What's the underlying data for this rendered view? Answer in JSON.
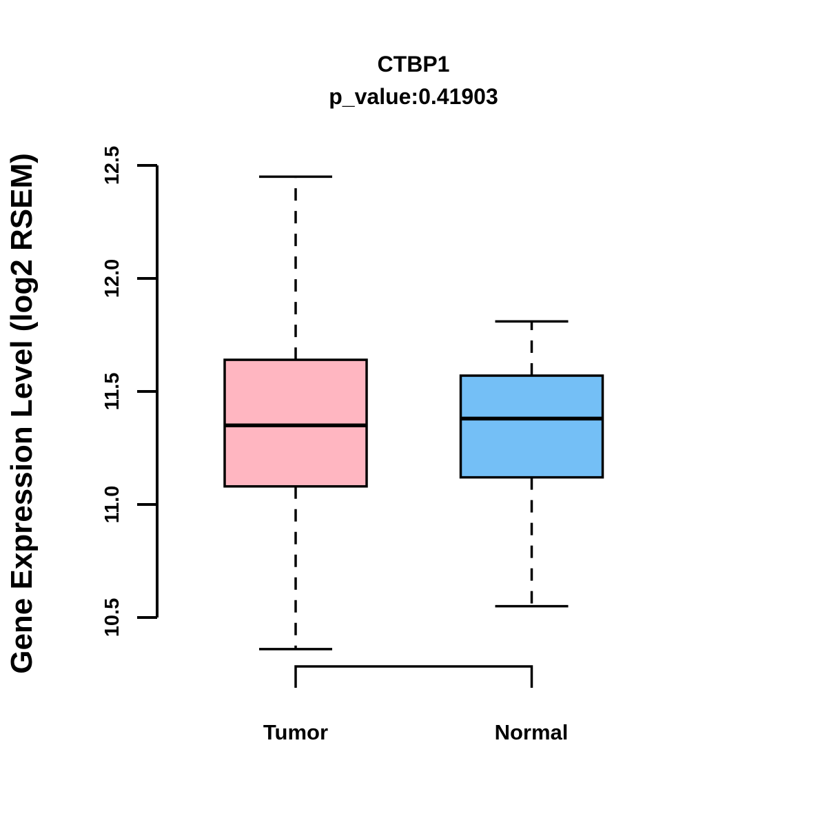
{
  "chart_data": {
    "type": "boxplot",
    "title": "CTBP1",
    "subtitle": "p_value:0.41903",
    "ylabel": "Gene Expression Level (log2 RSEM)",
    "xlabel": "",
    "ylim": [
      10.5,
      12.5
    ],
    "yticks": [
      "10.5",
      "11.0",
      "11.5",
      "12.0",
      "12.5"
    ],
    "grid": false,
    "legend_position": "none",
    "categories": [
      "Tumor",
      "Normal"
    ],
    "series": [
      {
        "name": "Tumor",
        "fill_color": "#FFB6C1",
        "lower_whisker": 10.36,
        "q1": 11.08,
        "median": 11.35,
        "q3": 11.64,
        "upper_whisker": 12.45
      },
      {
        "name": "Normal",
        "fill_color": "#74BFF6",
        "lower_whisker": 10.55,
        "q1": 11.12,
        "median": 11.38,
        "q3": 11.57,
        "upper_whisker": 11.81
      }
    ],
    "stroke_color": "#000000"
  }
}
